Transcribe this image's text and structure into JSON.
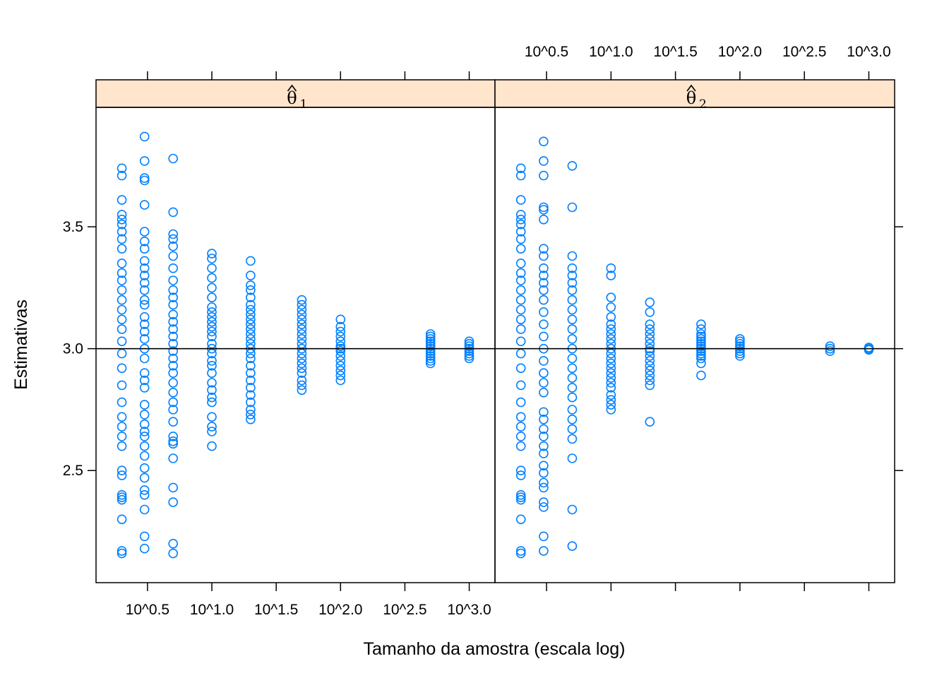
{
  "chart_data": {
    "type": "scatter",
    "layout": "two-panel lattice",
    "xlabel": "Tamanho da amostra (escala log)",
    "ylabel": "Estimativas",
    "x_scale": "log10",
    "x_ticks": [
      {
        "value": 3.1623,
        "label": "10^0.5"
      },
      {
        "value": 10,
        "label": "10^1.0"
      },
      {
        "value": 31.623,
        "label": "10^1.5"
      },
      {
        "value": 100,
        "label": "10^2.0"
      },
      {
        "value": 316.23,
        "label": "10^2.5"
      },
      {
        "value": 1000,
        "label": "10^3.0"
      }
    ],
    "y_ticks": [
      {
        "value": 2.5,
        "label": "2.5"
      },
      {
        "value": 3.0,
        "label": "3.0"
      },
      {
        "value": 3.5,
        "label": "3.5"
      }
    ],
    "xlim": [
      1.259,
      1585
    ],
    "ylim": [
      2.04,
      3.99
    ],
    "reference_line_y": 3.0,
    "point_color": "#0080ff",
    "strip_color": "#ffe5cc",
    "panels": [
      {
        "strip_symbol": "θ",
        "strip_subscript": "1",
        "groups": [
          {
            "n": 2,
            "values": [
              2.16,
              2.17,
              2.3,
              2.38,
              2.39,
              2.4,
              2.48,
              2.5,
              2.6,
              2.64,
              2.68,
              2.72,
              2.78,
              2.85,
              2.92,
              2.98,
              3.03,
              3.08,
              3.12,
              3.16,
              3.2,
              3.24,
              3.28,
              3.31,
              3.35,
              3.41,
              3.45,
              3.48,
              3.51,
              3.53,
              3.55,
              3.61,
              3.71,
              3.74
            ]
          },
          {
            "n": 3,
            "values": [
              2.18,
              2.23,
              2.34,
              2.4,
              2.42,
              2.47,
              2.51,
              2.56,
              2.6,
              2.64,
              2.66,
              2.69,
              2.73,
              2.77,
              2.84,
              2.87,
              2.9,
              2.96,
              3.0,
              3.04,
              3.07,
              3.1,
              3.13,
              3.18,
              3.2,
              3.24,
              3.27,
              3.3,
              3.33,
              3.36,
              3.41,
              3.44,
              3.48,
              3.59,
              3.69,
              3.7,
              3.77,
              3.87
            ]
          },
          {
            "n": 5,
            "values": [
              2.16,
              2.2,
              2.37,
              2.43,
              2.55,
              2.61,
              2.62,
              2.64,
              2.7,
              2.75,
              2.78,
              2.82,
              2.86,
              2.9,
              2.93,
              2.96,
              2.99,
              3.02,
              3.05,
              3.08,
              3.11,
              3.14,
              3.18,
              3.21,
              3.24,
              3.28,
              3.33,
              3.38,
              3.42,
              3.45,
              3.47,
              3.56,
              3.78
            ]
          },
          {
            "n": 10,
            "values": [
              2.6,
              2.66,
              2.68,
              2.72,
              2.78,
              2.8,
              2.83,
              2.86,
              2.9,
              2.93,
              2.95,
              2.98,
              3.0,
              3.02,
              3.05,
              3.07,
              3.09,
              3.11,
              3.13,
              3.15,
              3.17,
              3.21,
              3.25,
              3.29,
              3.33,
              3.37,
              3.39
            ]
          },
          {
            "n": 20,
            "values": [
              2.71,
              2.73,
              2.75,
              2.78,
              2.81,
              2.84,
              2.87,
              2.9,
              2.93,
              2.96,
              2.98,
              3.0,
              3.02,
              3.04,
              3.06,
              3.08,
              3.1,
              3.12,
              3.14,
              3.16,
              3.18,
              3.21,
              3.24,
              3.26,
              3.3,
              3.36
            ]
          },
          {
            "n": 50,
            "values": [
              2.83,
              2.85,
              2.87,
              2.9,
              2.92,
              2.94,
              2.96,
              2.98,
              3.0,
              3.02,
              3.04,
              3.06,
              3.08,
              3.1,
              3.12,
              3.14,
              3.16,
              3.18,
              3.2
            ]
          },
          {
            "n": 100,
            "values": [
              2.87,
              2.89,
              2.91,
              2.93,
              2.95,
              2.97,
              2.99,
              3.0,
              3.01,
              3.03,
              3.05,
              3.07,
              3.09,
              3.12
            ]
          },
          {
            "n": 500,
            "values": [
              2.94,
              2.95,
              2.96,
              2.97,
              2.98,
              2.99,
              3.0,
              3.01,
              3.02,
              3.03,
              3.04,
              3.05,
              3.06
            ]
          },
          {
            "n": 1000,
            "values": [
              2.96,
              2.97,
              2.98,
              2.99,
              3.0,
              3.01,
              3.02,
              3.03
            ]
          }
        ]
      },
      {
        "strip_symbol": "θ",
        "strip_subscript": "2",
        "groups": [
          {
            "n": 2,
            "values": [
              2.16,
              2.17,
              2.3,
              2.38,
              2.39,
              2.4,
              2.48,
              2.5,
              2.6,
              2.64,
              2.68,
              2.72,
              2.78,
              2.85,
              2.92,
              2.98,
              3.03,
              3.08,
              3.12,
              3.16,
              3.2,
              3.24,
              3.28,
              3.31,
              3.35,
              3.41,
              3.45,
              3.48,
              3.51,
              3.53,
              3.55,
              3.61,
              3.71,
              3.74
            ]
          },
          {
            "n": 3,
            "values": [
              2.17,
              2.23,
              2.35,
              2.37,
              2.43,
              2.45,
              2.49,
              2.52,
              2.57,
              2.6,
              2.64,
              2.67,
              2.71,
              2.74,
              2.82,
              2.86,
              2.9,
              2.95,
              3.0,
              3.05,
              3.1,
              3.15,
              3.2,
              3.24,
              3.27,
              3.3,
              3.33,
              3.38,
              3.41,
              3.53,
              3.57,
              3.58,
              3.71,
              3.77,
              3.85
            ]
          },
          {
            "n": 5,
            "values": [
              2.19,
              2.34,
              2.55,
              2.63,
              2.67,
              2.71,
              2.75,
              2.8,
              2.84,
              2.88,
              2.92,
              2.96,
              3.0,
              3.04,
              3.08,
              3.12,
              3.16,
              3.2,
              3.24,
              3.27,
              3.3,
              3.33,
              3.38,
              3.58,
              3.75
            ]
          },
          {
            "n": 10,
            "values": [
              2.75,
              2.77,
              2.79,
              2.81,
              2.84,
              2.86,
              2.88,
              2.9,
              2.92,
              2.94,
              2.96,
              2.98,
              3.0,
              3.02,
              3.04,
              3.06,
              3.08,
              3.1,
              3.13,
              3.17,
              3.21,
              3.3,
              3.33
            ]
          },
          {
            "n": 20,
            "values": [
              2.7,
              2.85,
              2.87,
              2.89,
              2.91,
              2.93,
              2.95,
              2.97,
              2.99,
              3.0,
              3.02,
              3.04,
              3.06,
              3.08,
              3.1,
              3.15,
              3.19
            ]
          },
          {
            "n": 50,
            "values": [
              2.89,
              2.94,
              2.96,
              2.97,
              2.98,
              2.99,
              3.0,
              3.01,
              3.02,
              3.03,
              3.04,
              3.05,
              3.06,
              3.08,
              3.1
            ]
          },
          {
            "n": 100,
            "values": [
              2.97,
              2.98,
              2.99,
              3.0,
              3.01,
              3.02,
              3.03,
              3.04
            ]
          },
          {
            "n": 500,
            "values": [
              2.99,
              3.0,
              3.01
            ]
          },
          {
            "n": 1000,
            "values": [
              2.995,
              3.0,
              3.005
            ]
          }
        ]
      }
    ]
  }
}
